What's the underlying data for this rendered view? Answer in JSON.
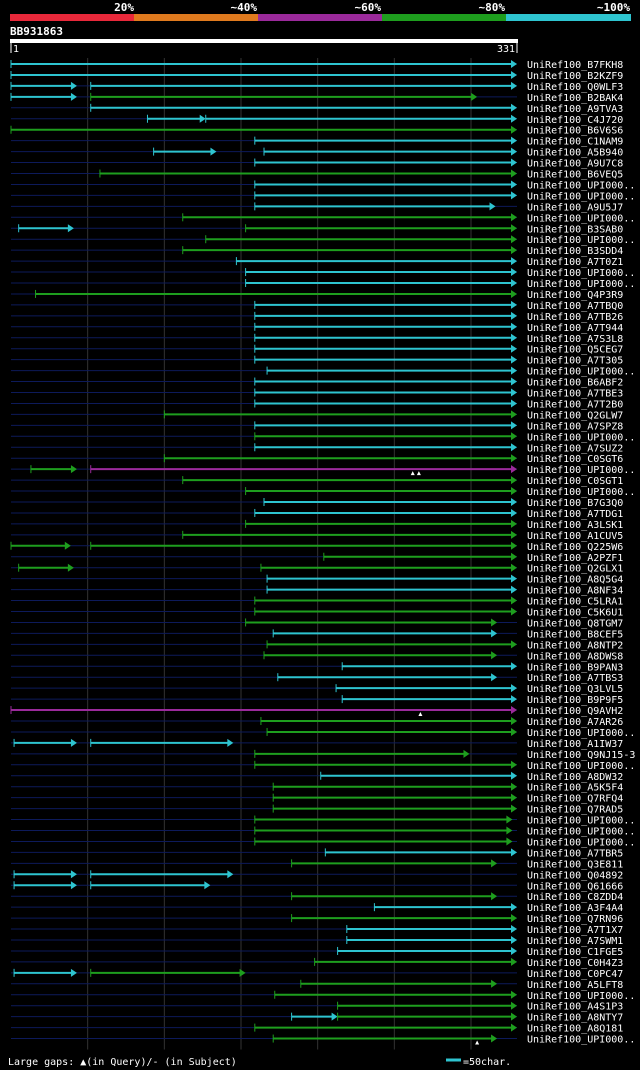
{
  "query_id": "BB931863",
  "query_start": "1",
  "query_end": "331",
  "query_length": 331,
  "identity_scale": [
    {
      "label": "20%",
      "color": "#e8283a"
    },
    {
      "label": "~40%",
      "color": "#e07a1e"
    },
    {
      "label": "~60%",
      "color": "#9b2a9b"
    },
    {
      "label": "~80%",
      "color": "#1e9e1e"
    },
    {
      "label": "~100%",
      "color": "#2ec4d0"
    }
  ],
  "colors": {
    "background": "#000000",
    "guide_line": "#0d1a5a",
    "grid": "#333333",
    "query_bar": "#ffffff"
  },
  "legend": {
    "gaps_text": "Large gaps: ▲(in Query)/- (in Subject)",
    "scale_text": "=50char.",
    "scale_units": 50
  },
  "chart_data": {
    "type": "alignment-overview",
    "title": "BB931863",
    "xlim": [
      1,
      331
    ],
    "hits": [
      {
        "name": "UniRef100_B7FKH8",
        "segs": [
          {
            "s": 1,
            "e": 331,
            "c": "c"
          }
        ]
      },
      {
        "name": "UniRef100_B2KZF9",
        "segs": [
          {
            "s": 1,
            "e": 331,
            "c": "c"
          }
        ]
      },
      {
        "name": "UniRef100_Q0WLF3",
        "segs": [
          {
            "s": 1,
            "e": 44,
            "c": "c"
          },
          {
            "s": 53,
            "e": 331,
            "c": "c"
          }
        ]
      },
      {
        "name": "UniRef100_B2BAK4",
        "segs": [
          {
            "s": 1,
            "e": 44,
            "c": "c"
          },
          {
            "s": 53,
            "e": 305,
            "c": "g"
          }
        ]
      },
      {
        "name": "UniRef100_A9TVA3",
        "segs": [
          {
            "s": 53,
            "e": 331,
            "c": "c"
          }
        ]
      },
      {
        "name": "UniRef100_C4J720",
        "segs": [
          {
            "s": 90,
            "e": 128,
            "c": "c"
          },
          {
            "s": 128,
            "e": 331,
            "c": "c"
          }
        ]
      },
      {
        "name": "UniRef100_B6V6S6",
        "segs": [
          {
            "s": 1,
            "e": 331,
            "c": "g"
          }
        ]
      },
      {
        "name": "UniRef100_C1NAM9",
        "segs": [
          {
            "s": 160,
            "e": 331,
            "c": "c"
          }
        ]
      },
      {
        "name": "UniRef100_A5B940",
        "segs": [
          {
            "s": 94,
            "e": 135,
            "c": "c"
          },
          {
            "s": 166,
            "e": 331,
            "c": "c"
          }
        ]
      },
      {
        "name": "UniRef100_A9U7C8",
        "segs": [
          {
            "s": 160,
            "e": 331,
            "c": "c"
          }
        ]
      },
      {
        "name": "UniRef100_B6VEQ5",
        "segs": [
          {
            "s": 59,
            "e": 331,
            "c": "g"
          }
        ]
      },
      {
        "name": "UniRef100_UPI000..",
        "segs": [
          {
            "s": 160,
            "e": 331,
            "c": "c"
          }
        ]
      },
      {
        "name": "UniRef100_UPI000..",
        "segs": [
          {
            "s": 160,
            "e": 331,
            "c": "c"
          }
        ]
      },
      {
        "name": "UniRef100_A9U5J7",
        "segs": [
          {
            "s": 160,
            "e": 317,
            "c": "c"
          }
        ]
      },
      {
        "name": "UniRef100_UPI000..",
        "segs": [
          {
            "s": 113,
            "e": 331,
            "c": "g"
          }
        ]
      },
      {
        "name": "UniRef100_B3SAB0",
        "segs": [
          {
            "s": 6,
            "e": 42,
            "c": "c"
          },
          {
            "s": 154,
            "e": 331,
            "c": "g"
          }
        ]
      },
      {
        "name": "UniRef100_UPI000..",
        "segs": [
          {
            "s": 128,
            "e": 331,
            "c": "g"
          }
        ]
      },
      {
        "name": "UniRef100_B3SDD4",
        "segs": [
          {
            "s": 113,
            "e": 331,
            "c": "g"
          }
        ]
      },
      {
        "name": "UniRef100_A7T0Z1",
        "segs": [
          {
            "s": 148,
            "e": 331,
            "c": "c"
          }
        ]
      },
      {
        "name": "UniRef100_UPI000..",
        "segs": [
          {
            "s": 154,
            "e": 331,
            "c": "c"
          }
        ]
      },
      {
        "name": "UniRef100_UPI000..",
        "segs": [
          {
            "s": 154,
            "e": 331,
            "c": "c"
          }
        ]
      },
      {
        "name": "UniRef100_Q4P3R9",
        "segs": [
          {
            "s": 17,
            "e": 331,
            "c": "g"
          }
        ]
      },
      {
        "name": "UniRef100_A7TBQ0",
        "segs": [
          {
            "s": 160,
            "e": 331,
            "c": "c"
          }
        ]
      },
      {
        "name": "UniRef100_A7TB26",
        "segs": [
          {
            "s": 160,
            "e": 331,
            "c": "c"
          }
        ]
      },
      {
        "name": "UniRef100_A7T944",
        "segs": [
          {
            "s": 160,
            "e": 331,
            "c": "c"
          }
        ]
      },
      {
        "name": "UniRef100_A7S3L8",
        "segs": [
          {
            "s": 160,
            "e": 331,
            "c": "c"
          }
        ]
      },
      {
        "name": "UniRef100_Q5CEG7",
        "segs": [
          {
            "s": 160,
            "e": 331,
            "c": "c"
          }
        ]
      },
      {
        "name": "UniRef100_A7T305",
        "segs": [
          {
            "s": 160,
            "e": 331,
            "c": "c"
          }
        ]
      },
      {
        "name": "UniRef100_UPI000..",
        "segs": [
          {
            "s": 168,
            "e": 331,
            "c": "c"
          }
        ]
      },
      {
        "name": "UniRef100_B6ABF2",
        "segs": [
          {
            "s": 160,
            "e": 331,
            "c": "c"
          }
        ]
      },
      {
        "name": "UniRef100_A7TBE3",
        "segs": [
          {
            "s": 160,
            "e": 331,
            "c": "c"
          }
        ]
      },
      {
        "name": "UniRef100_A7T2B0",
        "segs": [
          {
            "s": 160,
            "e": 331,
            "c": "c"
          }
        ]
      },
      {
        "name": "UniRef100_Q2GLW7",
        "segs": [
          {
            "s": 101,
            "e": 331,
            "c": "g"
          }
        ]
      },
      {
        "name": "UniRef100_A7SPZ8",
        "segs": [
          {
            "s": 160,
            "e": 331,
            "c": "c"
          }
        ]
      },
      {
        "name": "UniRef100_UPI000..",
        "segs": [
          {
            "s": 160,
            "e": 331,
            "c": "g"
          }
        ]
      },
      {
        "name": "UniRef100_A7SUZ2",
        "segs": [
          {
            "s": 160,
            "e": 331,
            "c": "c"
          }
        ]
      },
      {
        "name": "UniRef100_C0SGT6",
        "segs": [
          {
            "s": 101,
            "e": 331,
            "c": "g"
          }
        ]
      },
      {
        "name": "UniRef100_UPI000..",
        "segs": [
          {
            "s": 14,
            "e": 44,
            "c": "g"
          },
          {
            "s": 53,
            "e": 331,
            "c": "p"
          }
        ],
        "marks": [
          263,
          267
        ]
      },
      {
        "name": "UniRef100_C0SGT1",
        "segs": [
          {
            "s": 113,
            "e": 331,
            "c": "g"
          }
        ]
      },
      {
        "name": "UniRef100_UPI000..",
        "segs": [
          {
            "s": 154,
            "e": 331,
            "c": "g"
          }
        ]
      },
      {
        "name": "UniRef100_B7G3Q0",
        "segs": [
          {
            "s": 166,
            "e": 331,
            "c": "c"
          }
        ]
      },
      {
        "name": "UniRef100_A7TDG1",
        "segs": [
          {
            "s": 160,
            "e": 331,
            "c": "c"
          }
        ]
      },
      {
        "name": "UniRef100_A3LSK1",
        "segs": [
          {
            "s": 154,
            "e": 331,
            "c": "g"
          }
        ]
      },
      {
        "name": "UniRef100_A1CUV5",
        "segs": [
          {
            "s": 113,
            "e": 331,
            "c": "g"
          }
        ]
      },
      {
        "name": "UniRef100_Q225W6",
        "segs": [
          {
            "s": 1,
            "e": 40,
            "c": "g"
          },
          {
            "s": 53,
            "e": 331,
            "c": "g"
          }
        ]
      },
      {
        "name": "UniRef100_A2PZF1",
        "segs": [
          {
            "s": 205,
            "e": 331,
            "c": "g"
          }
        ]
      },
      {
        "name": "UniRef100_Q2GLX1",
        "segs": [
          {
            "s": 6,
            "e": 42,
            "c": "g"
          },
          {
            "s": 164,
            "e": 331,
            "c": "g"
          }
        ]
      },
      {
        "name": "UniRef100_A8Q5G4",
        "segs": [
          {
            "s": 168,
            "e": 331,
            "c": "c"
          }
        ]
      },
      {
        "name": "UniRef100_A8NF34",
        "segs": [
          {
            "s": 168,
            "e": 331,
            "c": "c"
          }
        ]
      },
      {
        "name": "UniRef100_C5LRA1",
        "segs": [
          {
            "s": 160,
            "e": 331,
            "c": "g"
          }
        ]
      },
      {
        "name": "UniRef100_C5K6U1",
        "segs": [
          {
            "s": 160,
            "e": 331,
            "c": "g"
          }
        ]
      },
      {
        "name": "UniRef100_Q8TGM7",
        "segs": [
          {
            "s": 154,
            "e": 318,
            "c": "g"
          }
        ]
      },
      {
        "name": "UniRef100_B8CEF5",
        "segs": [
          {
            "s": 172,
            "e": 318,
            "c": "c"
          }
        ]
      },
      {
        "name": "UniRef100_A8NTP2",
        "segs": [
          {
            "s": 168,
            "e": 331,
            "c": "g"
          }
        ]
      },
      {
        "name": "UniRef100_A8DWS8",
        "segs": [
          {
            "s": 166,
            "e": 318,
            "c": "g"
          }
        ]
      },
      {
        "name": "UniRef100_B9PAN3",
        "segs": [
          {
            "s": 217,
            "e": 331,
            "c": "c"
          }
        ]
      },
      {
        "name": "UniRef100_A7TBS3",
        "segs": [
          {
            "s": 175,
            "e": 318,
            "c": "c"
          }
        ]
      },
      {
        "name": "UniRef100_Q3LVL5",
        "segs": [
          {
            "s": 213,
            "e": 331,
            "c": "c"
          }
        ]
      },
      {
        "name": "UniRef100_B9P9F5",
        "segs": [
          {
            "s": 217,
            "e": 331,
            "c": "c"
          }
        ]
      },
      {
        "name": "UniRef100_Q9AVH2",
        "segs": [
          {
            "s": 1,
            "e": 331,
            "c": "p"
          }
        ],
        "marks": [
          268
        ]
      },
      {
        "name": "UniRef100_A7AR26",
        "segs": [
          {
            "s": 164,
            "e": 331,
            "c": "g"
          }
        ]
      },
      {
        "name": "UniRef100_UPI000..",
        "segs": [
          {
            "s": 168,
            "e": 331,
            "c": "g"
          }
        ]
      },
      {
        "name": "UniRef100_A1IW37",
        "segs": [
          {
            "s": 3,
            "e": 44,
            "c": "c"
          },
          {
            "s": 53,
            "e": 146,
            "c": "c"
          }
        ]
      },
      {
        "name": "UniRef100_Q9NJ15-3",
        "segs": [
          {
            "s": 160,
            "e": 300,
            "c": "g"
          }
        ]
      },
      {
        "name": "UniRef100_UPI000..",
        "segs": [
          {
            "s": 160,
            "e": 331,
            "c": "g"
          }
        ]
      },
      {
        "name": "UniRef100_A8DW32",
        "segs": [
          {
            "s": 203,
            "e": 331,
            "c": "c"
          }
        ]
      },
      {
        "name": "UniRef100_A5K5F4",
        "segs": [
          {
            "s": 172,
            "e": 331,
            "c": "g"
          }
        ]
      },
      {
        "name": "UniRef100_Q7RFQ4",
        "segs": [
          {
            "s": 172,
            "e": 331,
            "c": "g"
          }
        ]
      },
      {
        "name": "UniRef100_Q7RAD5",
        "segs": [
          {
            "s": 172,
            "e": 331,
            "c": "g"
          }
        ]
      },
      {
        "name": "UniRef100_UPI000..",
        "segs": [
          {
            "s": 160,
            "e": 328,
            "c": "g"
          }
        ]
      },
      {
        "name": "UniRef100_UPI000..",
        "segs": [
          {
            "s": 160,
            "e": 328,
            "c": "g"
          }
        ]
      },
      {
        "name": "UniRef100_UPI000..",
        "segs": [
          {
            "s": 160,
            "e": 328,
            "c": "g"
          }
        ]
      },
      {
        "name": "UniRef100_A7TBR5",
        "segs": [
          {
            "s": 206,
            "e": 331,
            "c": "c"
          }
        ]
      },
      {
        "name": "UniRef100_Q3E811",
        "segs": [
          {
            "s": 184,
            "e": 318,
            "c": "g"
          }
        ]
      },
      {
        "name": "UniRef100_Q04892",
        "segs": [
          {
            "s": 3,
            "e": 44,
            "c": "c"
          },
          {
            "s": 53,
            "e": 146,
            "c": "c"
          }
        ]
      },
      {
        "name": "UniRef100_Q61666",
        "segs": [
          {
            "s": 3,
            "e": 44,
            "c": "c"
          },
          {
            "s": 53,
            "e": 131,
            "c": "c"
          }
        ]
      },
      {
        "name": "UniRef100_C8ZDD4",
        "segs": [
          {
            "s": 184,
            "e": 318,
            "c": "g"
          }
        ]
      },
      {
        "name": "UniRef100_A3F4A4",
        "segs": [
          {
            "s": 238,
            "e": 331,
            "c": "c"
          }
        ]
      },
      {
        "name": "UniRef100_Q7RN96",
        "segs": [
          {
            "s": 184,
            "e": 331,
            "c": "g"
          }
        ]
      },
      {
        "name": "UniRef100_A7T1X7",
        "segs": [
          {
            "s": 220,
            "e": 331,
            "c": "c"
          }
        ]
      },
      {
        "name": "UniRef100_A7SWM1",
        "segs": [
          {
            "s": 220,
            "e": 331,
            "c": "c"
          }
        ]
      },
      {
        "name": "UniRef100_C1FGE5",
        "segs": [
          {
            "s": 214,
            "e": 331,
            "c": "c"
          }
        ]
      },
      {
        "name": "UniRef100_C0H4Z3",
        "segs": [
          {
            "s": 199,
            "e": 331,
            "c": "g"
          }
        ]
      },
      {
        "name": "UniRef100_C0PC47",
        "segs": [
          {
            "s": 3,
            "e": 44,
            "c": "c"
          },
          {
            "s": 53,
            "e": 154,
            "c": "g"
          }
        ]
      },
      {
        "name": "UniRef100_A5LFT8",
        "segs": [
          {
            "s": 190,
            "e": 318,
            "c": "g"
          }
        ]
      },
      {
        "name": "UniRef100_UPI000..",
        "segs": [
          {
            "s": 173,
            "e": 331,
            "c": "g"
          }
        ]
      },
      {
        "name": "UniRef100_A4S1P3",
        "segs": [
          {
            "s": 214,
            "e": 331,
            "c": "g"
          }
        ]
      },
      {
        "name": "UniRef100_A8NTY7",
        "segs": [
          {
            "s": 184,
            "e": 214,
            "c": "c"
          },
          {
            "s": 214,
            "e": 331,
            "c": "g"
          }
        ]
      },
      {
        "name": "UniRef100_A8Q181",
        "segs": [
          {
            "s": 160,
            "e": 331,
            "c": "g"
          }
        ]
      },
      {
        "name": "UniRef100_UPI000..",
        "segs": [
          {
            "s": 172,
            "e": 318,
            "c": "g"
          }
        ],
        "marks": [
          305
        ]
      }
    ]
  }
}
